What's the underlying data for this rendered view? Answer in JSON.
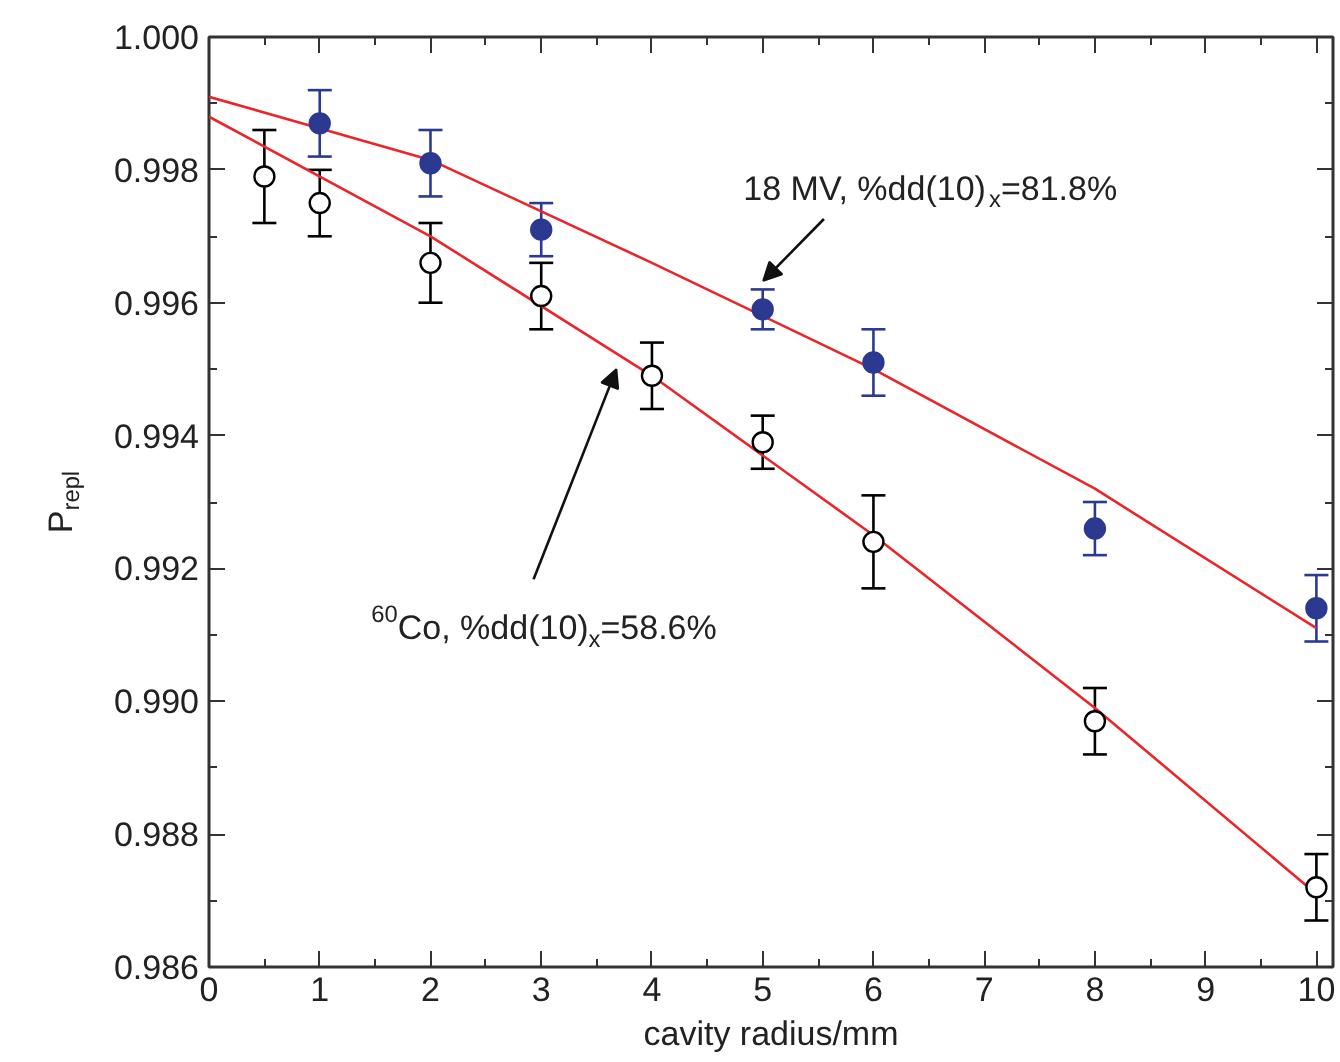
{
  "chart_data": {
    "type": "scatter",
    "xlabel": "cavity radius/mm",
    "ylabel": "P$_{repl}$",
    "xlim": [
      0,
      10.15
    ],
    "ylim": [
      0.986,
      1.0
    ],
    "xticks": [
      0,
      1,
      2,
      3,
      4,
      5,
      6,
      7,
      8,
      9,
      10
    ],
    "yticks": [
      {
        "value": 0.986,
        "label": "0.986"
      },
      {
        "value": 0.988,
        "label": "0.988"
      },
      {
        "value": 0.99,
        "label": "0.990"
      },
      {
        "value": 0.992,
        "label": "0.992"
      },
      {
        "value": 0.994,
        "label": "0.994"
      },
      {
        "value": 0.996,
        "label": "0.996"
      },
      {
        "value": 0.998,
        "label": "0.998"
      },
      {
        "value": 1.0,
        "label": "1.000"
      }
    ],
    "grid": false,
    "marker": "circle",
    "series": [
      {
        "type": "line",
        "color": "#e8262b",
        "marker": "none",
        "x": [
          0,
          2,
          4,
          6,
          8,
          10
        ],
        "values": [
          0.9991,
          0.99815,
          0.9966,
          0.995,
          0.9932,
          0.9911
        ]
      },
      {
        "type": "line",
        "color": "#e8262b",
        "marker": "none",
        "x": [
          0,
          2,
          4,
          6,
          8,
          10
        ],
        "values": [
          0.9988,
          0.997,
          0.9949,
          0.9925,
          0.9899,
          0.9871
        ]
      },
      {
        "color": "#2b3990",
        "x": [
          1,
          2,
          3,
          5,
          6,
          8,
          10
        ],
        "values": [
          0.9987,
          0.9981,
          0.9971,
          0.9959,
          0.9951,
          0.9926,
          0.9914
        ],
        "errors": [
          0.0005,
          0.0005,
          0.0004,
          0.0003,
          0.0005,
          0.0004,
          0.0005
        ]
      },
      {
        "color": "#000000",
        "marker": "circle_open",
        "x": [
          0.5,
          1,
          2,
          3,
          4,
          5,
          6,
          8,
          10
        ],
        "values": [
          0.9979,
          0.9975,
          0.9966,
          0.9961,
          0.9949,
          0.9939,
          0.9924,
          0.9897,
          0.9872
        ],
        "errors": [
          0.0007,
          0.0005,
          0.0006,
          0.0005,
          0.0005,
          0.0004,
          0.0007,
          0.0005,
          0.0005
        ]
      }
    ],
    "annotations": [
      "18 MV, %dd(10)$_{x}$=81.8%",
      "$^{60}$Co, %dd(10)$_{x}$=58.6%"
    ]
  }
}
